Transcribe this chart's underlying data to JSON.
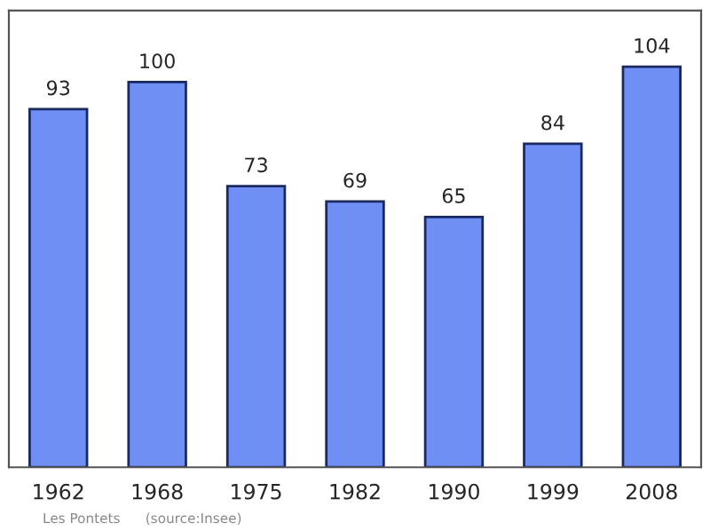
{
  "chart_data": {
    "type": "bar",
    "categories": [
      "1962",
      "1968",
      "1975",
      "1982",
      "1990",
      "1999",
      "2008"
    ],
    "values": [
      93,
      100,
      73,
      69,
      65,
      84,
      104
    ],
    "color": "#6f8ff5",
    "data_labels": true,
    "grid": false,
    "tick_labels": "x",
    "annotations": [
      "Les Pontets",
      "(source:Insee)"
    ]
  }
}
